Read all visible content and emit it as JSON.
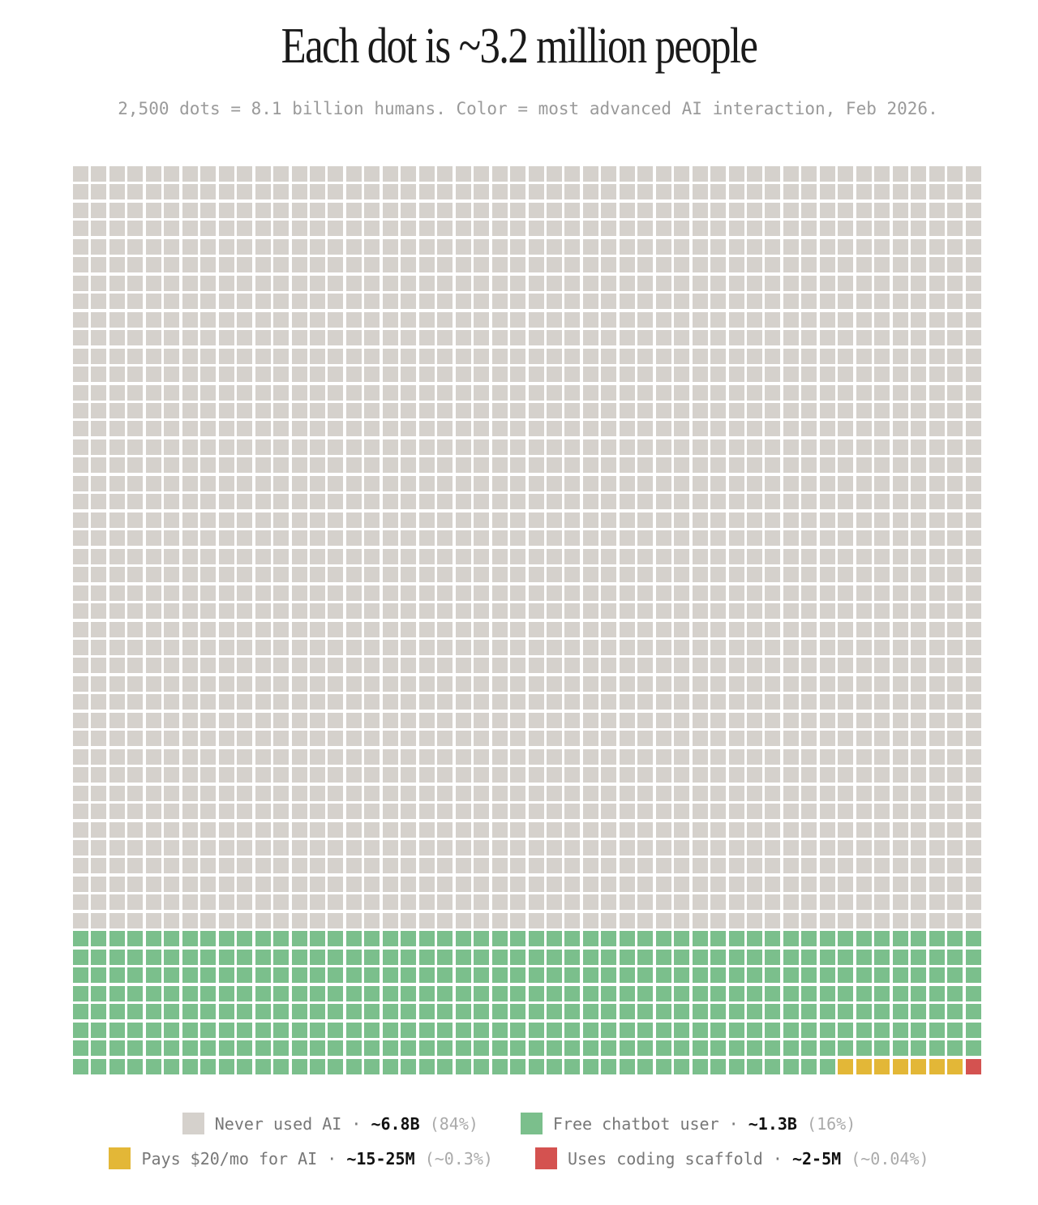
{
  "chart_data": {
    "type": "waffle",
    "title": "Each dot is ~3.2 million people",
    "subtitle": "2,500 dots = 8.1 billion humans. Color = most advanced AI interaction, Feb 2026.",
    "grid": {
      "rows": 50,
      "columns": 50
    },
    "categories": [
      {
        "name": "Never used AI",
        "dots": 2100,
        "color": "#d5d1cc",
        "value": "~6.8B",
        "percent": "(84%)"
      },
      {
        "name": "Free chatbot user",
        "dots": 392,
        "color": "#7bbf8c",
        "value": "~1.3B",
        "percent": "(16%)"
      },
      {
        "name": "Pays $20/mo for AI",
        "dots": 7,
        "color": "#e3b737",
        "value": "~15-25M",
        "percent": "(~0.3%)"
      },
      {
        "name": "Uses coding scaffold",
        "dots": 1,
        "color": "#d45250",
        "value": "~2-5M",
        "percent": "(~0.04%)"
      }
    ],
    "separator": "·",
    "legend_placement": "bottom"
  }
}
